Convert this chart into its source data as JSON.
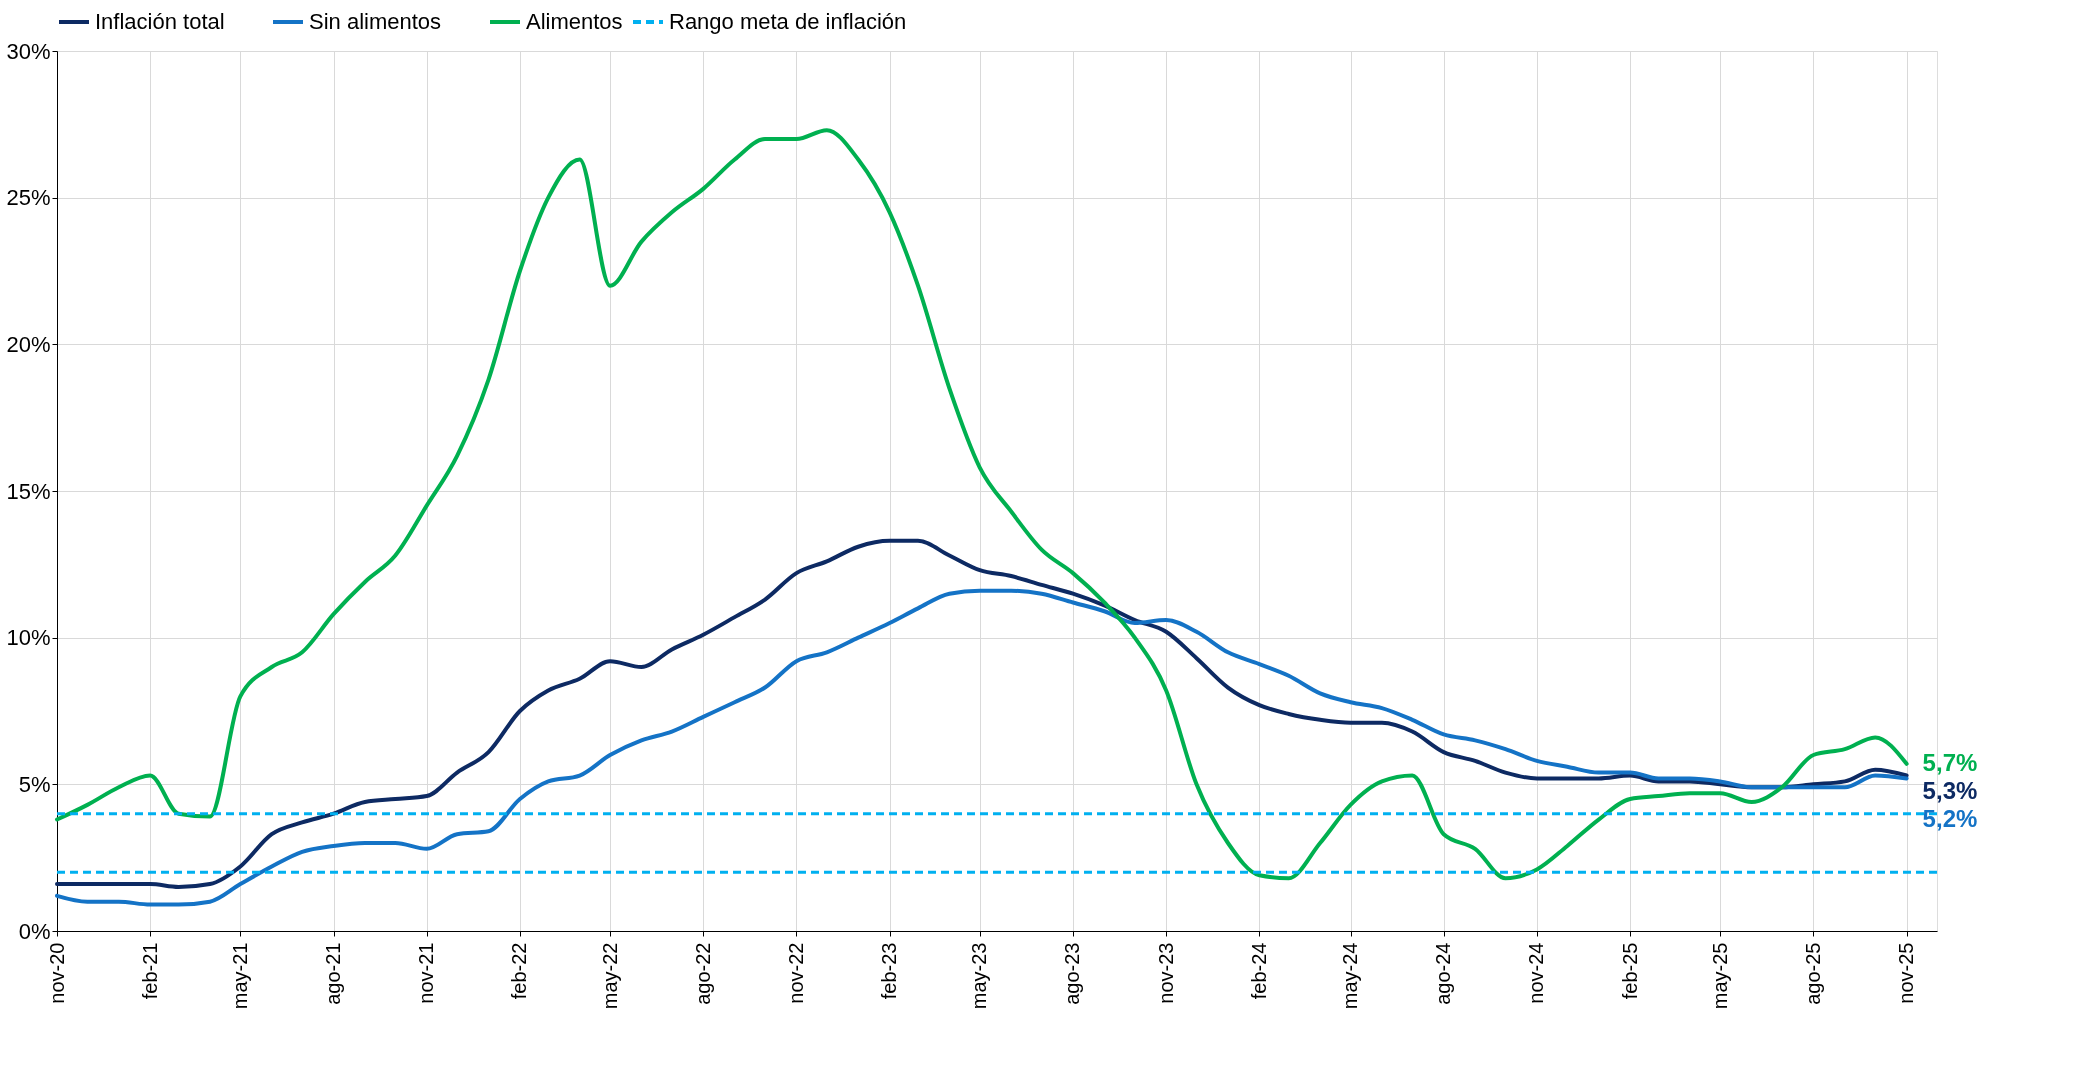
{
  "chart_data": {
    "type": "line",
    "x": [
      "2020-11",
      "2020-12",
      "2021-01",
      "2021-02",
      "2021-03",
      "2021-04",
      "2021-05",
      "2021-06",
      "2021-07",
      "2021-08",
      "2021-09",
      "2021-10",
      "2021-11",
      "2021-12",
      "2022-01",
      "2022-02",
      "2022-03",
      "2022-04",
      "2022-05",
      "2022-06",
      "2022-07",
      "2022-08",
      "2022-09",
      "2022-10",
      "2022-11",
      "2022-12",
      "2023-01",
      "2023-02",
      "2023-03",
      "2023-04",
      "2023-05",
      "2023-06",
      "2023-07",
      "2023-08",
      "2023-09",
      "2023-10",
      "2023-11",
      "2023-12",
      "2024-01",
      "2024-02",
      "2024-03",
      "2024-04",
      "2024-05",
      "2024-06",
      "2024-07",
      "2024-08",
      "2024-09",
      "2024-10",
      "2024-11",
      "2024-12",
      "2025-01",
      "2025-02",
      "2025-03",
      "2025-04",
      "2025-05",
      "2025-06",
      "2025-07",
      "2025-08",
      "2025-09",
      "2025-10",
      "2025-11"
    ],
    "series": [
      {
        "name": "Inflación total",
        "color": "#0d2a63",
        "values": [
          1.6,
          1.6,
          1.6,
          1.6,
          1.5,
          1.6,
          2.2,
          3.3,
          3.7,
          4.0,
          4.4,
          4.5,
          4.6,
          5.4,
          6.1,
          7.5,
          8.2,
          8.6,
          9.2,
          9.0,
          9.6,
          10.1,
          10.7,
          11.3,
          12.2,
          12.6,
          13.1,
          13.3,
          13.3,
          12.8,
          12.3,
          12.1,
          11.8,
          11.5,
          11.1,
          10.6,
          10.2,
          9.3,
          8.3,
          7.7,
          7.4,
          7.2,
          7.1,
          7.1,
          6.8,
          6.1,
          5.8,
          5.4,
          5.2,
          5.2,
          5.2,
          5.3,
          5.1,
          5.1,
          5.0,
          4.9,
          4.9,
          5.0,
          5.1,
          5.5,
          5.3
        ],
        "value_labels": [
          null,
          null,
          null,
          null,
          null,
          null,
          null,
          null,
          null,
          null,
          null,
          null,
          null,
          null,
          null,
          null,
          null,
          null,
          null,
          null,
          null,
          null,
          null,
          null,
          null,
          null,
          null,
          null,
          null,
          null,
          null,
          null,
          null,
          null,
          null,
          null,
          null,
          null,
          null,
          null,
          null,
          null,
          null,
          null,
          null,
          null,
          null,
          null,
          null,
          null,
          null,
          null,
          null,
          null,
          null,
          null,
          null,
          null,
          null,
          null,
          "5,3%"
        ]
      },
      {
        "name": "Sin alimentos",
        "color": "#1473c6",
        "values": [
          1.2,
          1.0,
          1.0,
          0.9,
          0.9,
          1.0,
          1.6,
          2.2,
          2.7,
          2.9,
          3.0,
          3.0,
          2.8,
          3.3,
          3.4,
          4.5,
          5.1,
          5.3,
          6.0,
          6.5,
          6.8,
          7.3,
          7.8,
          8.3,
          9.2,
          9.5,
          10.0,
          10.5,
          11.0,
          11.5,
          11.6,
          11.6,
          11.5,
          11.2,
          10.9,
          10.5,
          10.6,
          10.2,
          9.5,
          9.1,
          8.7,
          8.1,
          7.8,
          7.6,
          7.2,
          6.7,
          6.5,
          6.2,
          5.8,
          5.6,
          5.4,
          5.4,
          5.2,
          5.2,
          5.1,
          4.9,
          4.9,
          4.9,
          4.9,
          5.3,
          5.2
        ],
        "value_labels": [
          null,
          null,
          null,
          null,
          null,
          null,
          null,
          null,
          null,
          null,
          null,
          null,
          null,
          null,
          null,
          null,
          null,
          null,
          null,
          null,
          null,
          null,
          null,
          null,
          null,
          null,
          null,
          null,
          null,
          null,
          null,
          null,
          null,
          null,
          null,
          null,
          null,
          null,
          null,
          null,
          null,
          null,
          null,
          null,
          null,
          null,
          null,
          null,
          null,
          null,
          null,
          null,
          null,
          null,
          null,
          null,
          null,
          null,
          null,
          null,
          "5,2%"
        ]
      },
      {
        "name": "Alimentos",
        "color": "#00b050",
        "values": [
          3.8,
          4.3,
          4.9,
          5.3,
          4.0,
          3.9,
          8.0,
          9.0,
          9.5,
          10.8,
          11.9,
          12.8,
          14.5,
          16.2,
          18.8,
          22.5,
          25.0,
          26.3,
          22.0,
          23.5,
          24.5,
          25.3,
          26.3,
          27.0,
          27.0,
          27.3,
          26.3,
          24.5,
          22.0,
          18.5,
          15.8,
          14.3,
          13.0,
          12.2,
          11.2,
          10.0,
          8.2,
          5.0,
          3.0,
          1.9,
          1.8,
          3.0,
          4.3,
          5.1,
          5.3,
          3.3,
          2.8,
          1.8,
          2.1,
          2.9,
          3.8,
          4.5,
          4.6,
          4.7,
          4.7,
          4.4,
          4.9,
          6.0,
          6.2,
          6.6,
          5.7
        ],
        "value_labels": [
          null,
          null,
          null,
          null,
          null,
          null,
          null,
          null,
          null,
          null,
          null,
          null,
          null,
          null,
          null,
          null,
          null,
          null,
          null,
          null,
          null,
          null,
          null,
          null,
          null,
          null,
          null,
          null,
          null,
          null,
          null,
          null,
          null,
          null,
          null,
          null,
          null,
          null,
          null,
          null,
          null,
          null,
          null,
          null,
          null,
          null,
          null,
          null,
          null,
          null,
          null,
          null,
          null,
          null,
          null,
          null,
          null,
          null,
          null,
          null,
          "5,7%"
        ]
      }
    ],
    "ref_lines": [
      {
        "axis": "y",
        "value": 4,
        "label": "Rango meta de inflación",
        "color": "#00b0f0",
        "line_style": "dashed"
      },
      {
        "axis": "y",
        "value": 2,
        "color": "#00b0f0",
        "line_style": "dashed"
      }
    ],
    "xlim": [
      "2020-11",
      "2025-12"
    ],
    "xticks": [
      {
        "value": "2020-11",
        "label": "nov-20"
      },
      {
        "value": "2021-02",
        "label": "feb-21"
      },
      {
        "value": "2021-05",
        "label": "may-21"
      },
      {
        "value": "2021-08",
        "label": "ago-21"
      },
      {
        "value": "2021-11",
        "label": "nov-21"
      },
      {
        "value": "2022-02",
        "label": "feb-22"
      },
      {
        "value": "2022-05",
        "label": "may-22"
      },
      {
        "value": "2022-08",
        "label": "ago-22"
      },
      {
        "value": "2022-11",
        "label": "nov-22"
      },
      {
        "value": "2023-02",
        "label": "feb-23"
      },
      {
        "value": "2023-05",
        "label": "may-23"
      },
      {
        "value": "2023-08",
        "label": "ago-23"
      },
      {
        "value": "2023-11",
        "label": "nov-23"
      },
      {
        "value": "2024-02",
        "label": "feb-24"
      },
      {
        "value": "2024-05",
        "label": "may-24"
      },
      {
        "value": "2024-08",
        "label": "ago-24"
      },
      {
        "value": "2024-11",
        "label": "nov-24"
      },
      {
        "value": "2025-02",
        "label": "feb-25"
      },
      {
        "value": "2025-05",
        "label": "may-25"
      },
      {
        "value": "2025-08",
        "label": "ago-25"
      },
      {
        "value": "2025-11",
        "label": "nov-25"
      }
    ],
    "ylim": [
      0,
      30
    ],
    "yticks": [
      {
        "value": 0,
        "label": "0%"
      },
      {
        "value": 5,
        "label": "5%"
      },
      {
        "value": 10,
        "label": "10%"
      },
      {
        "value": 15,
        "label": "15%"
      },
      {
        "value": 20,
        "label": "20%"
      },
      {
        "value": 25,
        "label": "25%"
      },
      {
        "value": 30,
        "label": "30%"
      }
    ],
    "grid": true,
    "legend": "top",
    "marker": "none",
    "line_style": "solid"
  }
}
